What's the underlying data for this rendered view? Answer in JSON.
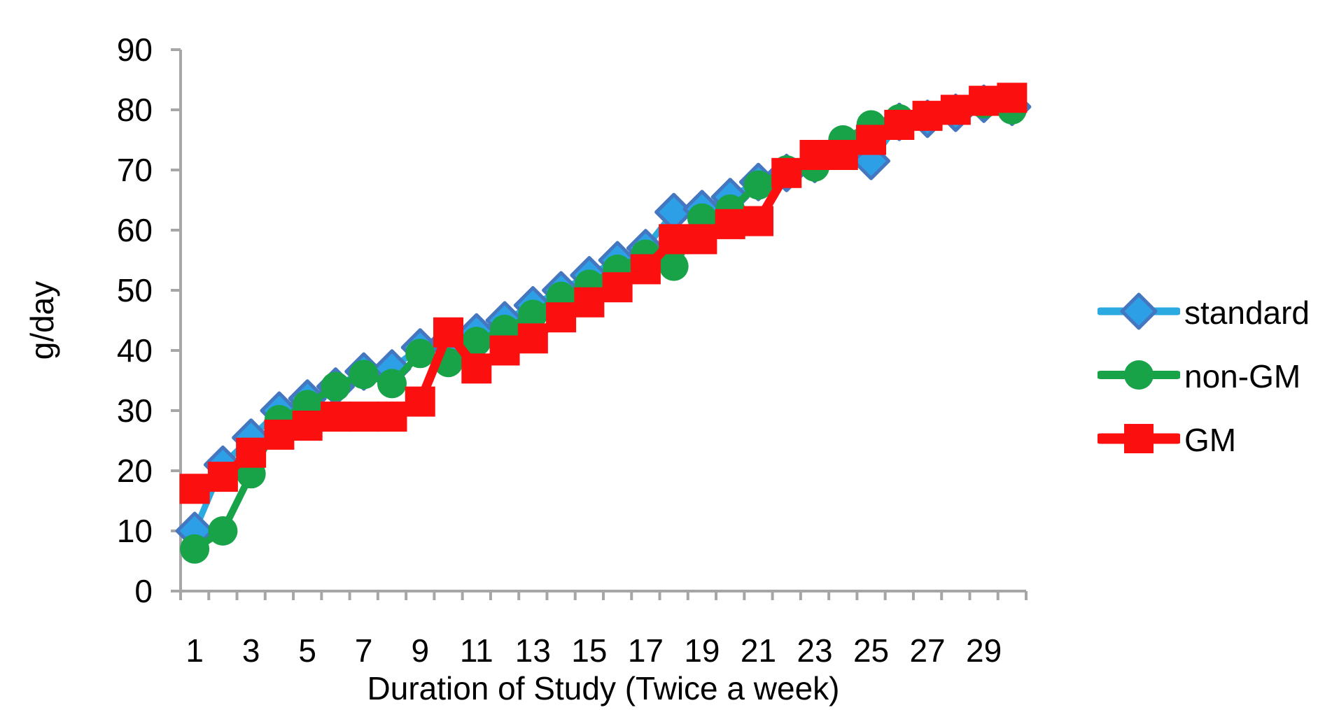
{
  "chart_data": {
    "type": "line",
    "title": "",
    "xlabel": "Duration of Study (Twice a week)",
    "ylabel": "g/day",
    "x": [
      1,
      2,
      3,
      4,
      5,
      6,
      7,
      8,
      9,
      10,
      11,
      12,
      13,
      14,
      15,
      16,
      17,
      18,
      19,
      20,
      21,
      22,
      23,
      24,
      25,
      26,
      27,
      28,
      29,
      30
    ],
    "x_tick_labels": [
      "1",
      "3",
      "5",
      "7",
      "9",
      "11",
      "13",
      "15",
      "17",
      "19",
      "21",
      "23",
      "25",
      "27",
      "29"
    ],
    "y_tick_labels": [
      "0",
      "10",
      "20",
      "30",
      "40",
      "50",
      "60",
      "70",
      "80",
      "90"
    ],
    "ylim": [
      0,
      90
    ],
    "y_tick_step": 10,
    "grid": false,
    "legend_position": "right",
    "axis_color": "#A6A6A6",
    "text_color": "#000000",
    "series": [
      {
        "name": "standard",
        "marker": "diamond",
        "line_color": "#2BA9E1",
        "marker_fill": "#2C9FE6",
        "marker_stroke": "#4477BF",
        "values": [
          10,
          21,
          25.5,
          30,
          32,
          34,
          36.5,
          37,
          40.5,
          41.5,
          43,
          45,
          47.5,
          50,
          52.5,
          55,
          57,
          63,
          63.5,
          65.5,
          68,
          69.5,
          71,
          73.5,
          71.5,
          78,
          78.5,
          79.5,
          81,
          80.5
        ]
      },
      {
        "name": "non-GM",
        "marker": "circle",
        "line_color": "#18A349",
        "marker_fill": "#18A349",
        "marker_stroke": "#18A349",
        "values": [
          7,
          10,
          19.5,
          28.5,
          31,
          34,
          36,
          34.5,
          39.5,
          38,
          41.5,
          43.5,
          46,
          49,
          51,
          53.5,
          56,
          54,
          62,
          63.5,
          67.5,
          70,
          70.5,
          75,
          77.5,
          78.5,
          79,
          80,
          81,
          80
        ]
      },
      {
        "name": "GM",
        "marker": "square",
        "line_color": "#FB0F0F",
        "marker_fill": "#FB0F0F",
        "marker_stroke": "#FB0F0F",
        "values": [
          17,
          19,
          23,
          26,
          27.5,
          29,
          29,
          29,
          31.5,
          43,
          37,
          40,
          42,
          45.5,
          48,
          50.5,
          53.5,
          58.5,
          58.5,
          61,
          61.5,
          69.5,
          72.5,
          72.5,
          75,
          77.5,
          79,
          80,
          81.5,
          82
        ]
      }
    ]
  }
}
